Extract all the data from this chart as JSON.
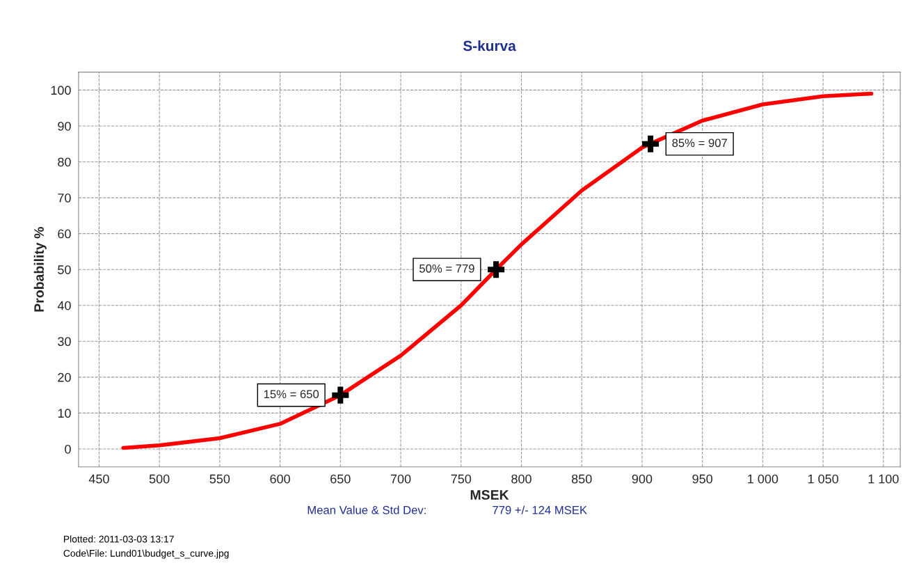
{
  "chart_data": {
    "type": "line",
    "title": "S-kurva",
    "xlabel": "MSEK",
    "ylabel": "Probability %",
    "series": [
      {
        "color": "#ff0000",
        "marker": "none",
        "x": [
          470,
          500,
          550,
          600,
          650,
          700,
          750,
          779,
          800,
          850,
          900,
          950,
          1000,
          1050,
          1090
        ],
        "values": [
          0.3,
          1,
          3,
          7,
          15,
          26,
          40,
          50,
          57,
          72,
          84,
          91.5,
          96,
          98.3,
          99
        ]
      },
      {
        "type": "scatter",
        "color": "#000000",
        "marker": "cross",
        "x": [
          650,
          779,
          907
        ],
        "values": [
          15,
          50,
          85
        ]
      }
    ],
    "annotations": [
      "15% = 650",
      "50% = 779",
      "85% = 907",
      "Mean Value & Std Dev:",
      "779 +/- 124 MSEK",
      "Plotted: 2011-03-03 13:17",
      "Code\\File: Lund01\\budget_s_curve.jpg"
    ],
    "xlim": [
      433,
      1114
    ],
    "ylim": [
      -5,
      105
    ],
    "xticks": [
      450,
      500,
      550,
      600,
      650,
      700,
      750,
      800,
      850,
      900,
      950,
      {
        "value": 1000,
        "label": "1 000"
      },
      {
        "value": 1050,
        "label": "1 050"
      },
      {
        "value": 1100,
        "label": "1 100"
      }
    ],
    "yticks": [
      0,
      10,
      20,
      30,
      40,
      50,
      60,
      70,
      80,
      90,
      100
    ],
    "grid": true,
    "legend": false
  }
}
